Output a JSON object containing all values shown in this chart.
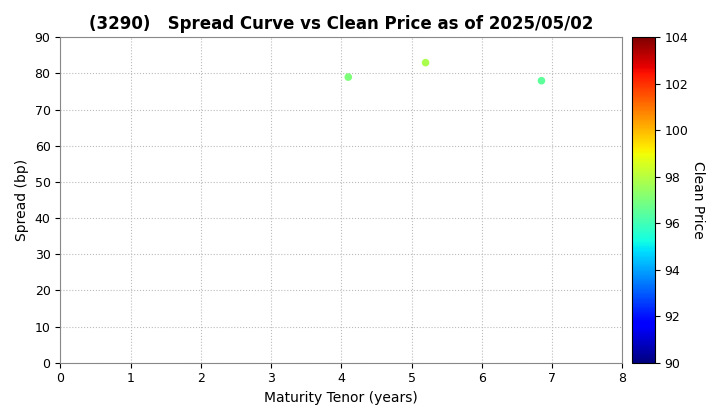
{
  "title": "(3290)   Spread Curve vs Clean Price as of 2025/05/02",
  "xlabel": "Maturity Tenor (years)",
  "ylabel": "Spread (bp)",
  "colorbar_label": "Clean Price",
  "points": [
    {
      "tenor": 4.1,
      "spread": 79.0,
      "price": 97.0
    },
    {
      "tenor": 5.2,
      "spread": 83.0,
      "price": 97.8
    },
    {
      "tenor": 6.85,
      "spread": 78.0,
      "price": 96.5
    }
  ],
  "xlim": [
    0,
    8
  ],
  "ylim": [
    0,
    90
  ],
  "price_min": 90,
  "price_max": 104,
  "cmap": "jet",
  "marker_size": 30,
  "title_fontsize": 12,
  "axis_fontsize": 10,
  "colorbar_fontsize": 10,
  "tick_fontsize": 9,
  "background_color": "#ffffff",
  "grid_color": "#bbbbbb",
  "grid_style": "dotted",
  "figwidth": 7.2,
  "figheight": 4.2,
  "dpi": 100
}
